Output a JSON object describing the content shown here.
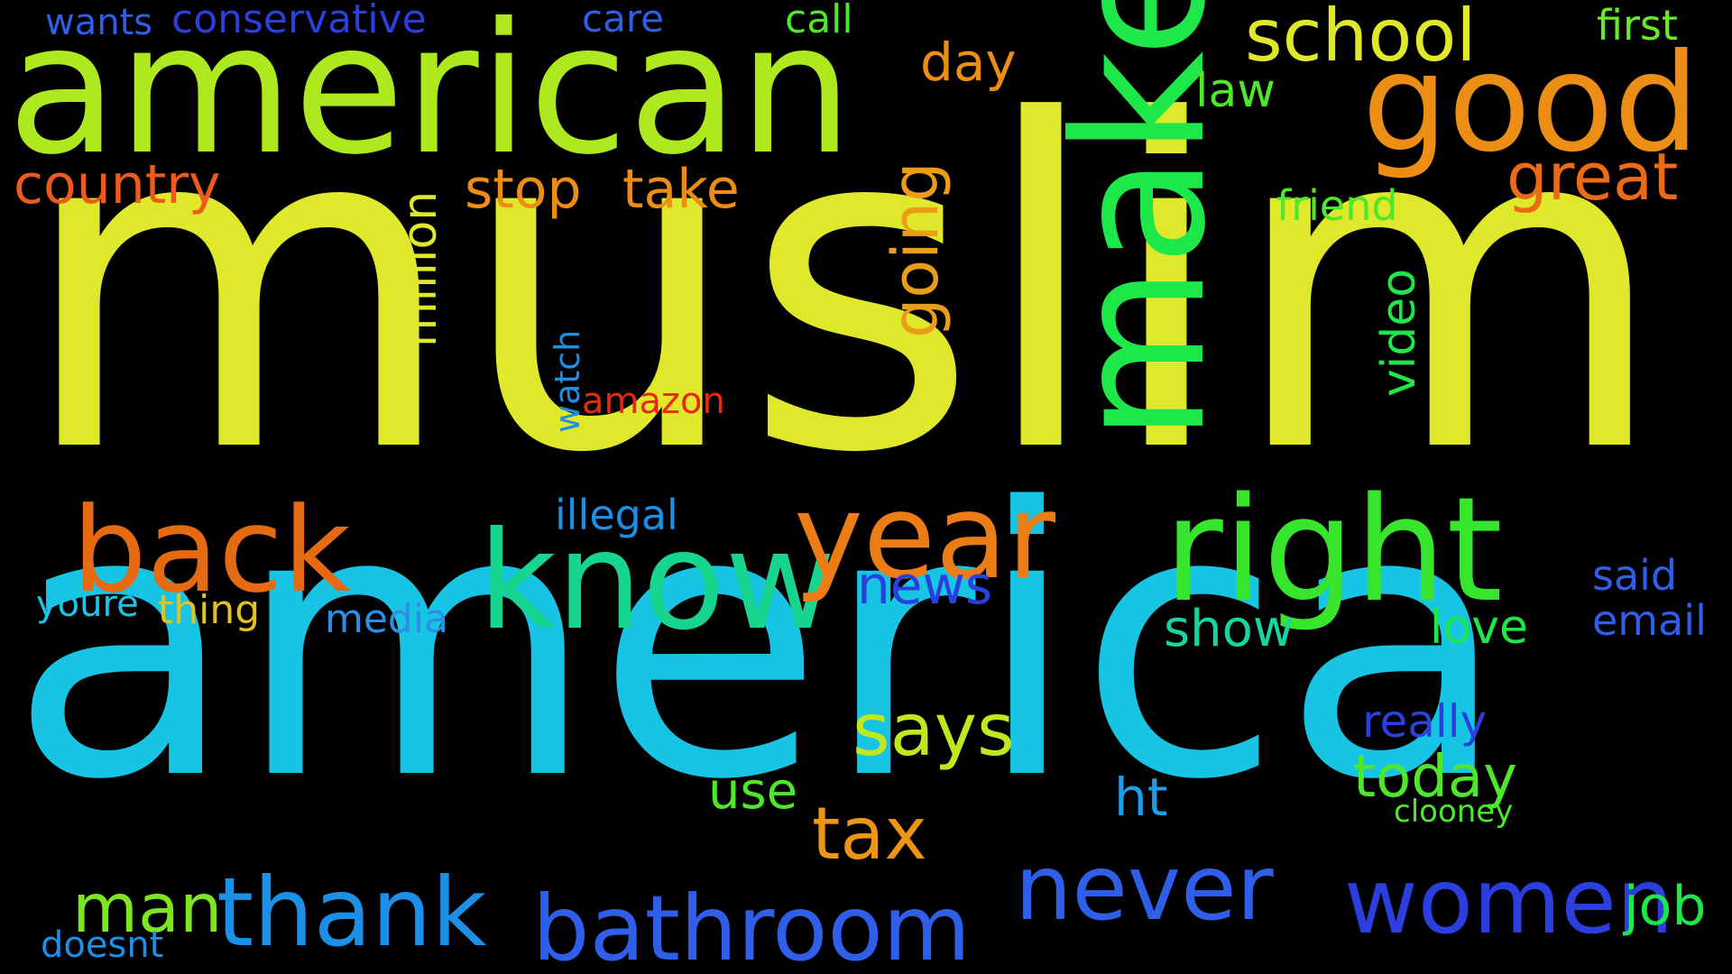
{
  "words": [
    {
      "text": "muslim",
      "color": "#dfe82a"
    },
    {
      "text": "america",
      "color": "#17c4e4"
    },
    {
      "text": "american",
      "color": "#aee81f"
    },
    {
      "text": "make",
      "color": "#1ee849"
    },
    {
      "text": "good",
      "color": "#ec8d16"
    },
    {
      "text": "right",
      "color": "#36e52c"
    },
    {
      "text": "know",
      "color": "#17d48e"
    },
    {
      "text": "year",
      "color": "#ec7c16"
    },
    {
      "text": "back",
      "color": "#e66a12"
    },
    {
      "text": "thank",
      "color": "#1c8fe6"
    },
    {
      "text": "bathroom",
      "color": "#2f5fe8"
    },
    {
      "text": "never",
      "color": "#2f5fe8"
    },
    {
      "text": "women",
      "color": "#2b3fdf"
    },
    {
      "text": "school",
      "color": "#dfe82a"
    },
    {
      "text": "country",
      "color": "#ec5a1c"
    },
    {
      "text": "stop",
      "color": "#ec8d16"
    },
    {
      "text": "take",
      "color": "#ec8d16"
    },
    {
      "text": "great",
      "color": "#ec6a16"
    },
    {
      "text": "says",
      "color": "#bfe81f"
    },
    {
      "text": "tax",
      "color": "#ec9516"
    },
    {
      "text": "man",
      "color": "#7ce61f"
    },
    {
      "text": "going",
      "color": "#ec9d16"
    },
    {
      "text": "million",
      "color": "#dfe82a"
    },
    {
      "text": "conservative",
      "color": "#2b3fdf"
    },
    {
      "text": "wants",
      "color": "#2f5fe8"
    },
    {
      "text": "care",
      "color": "#2f5fe8"
    },
    {
      "text": "call",
      "color": "#4ee82a"
    },
    {
      "text": "first",
      "color": "#6ae82a"
    },
    {
      "text": "day",
      "color": "#ec8d16"
    },
    {
      "text": "law",
      "color": "#4ee82a"
    },
    {
      "text": "friend",
      "color": "#4ee82a"
    },
    {
      "text": "today",
      "color": "#4ee82a"
    },
    {
      "text": "news",
      "color": "#2b3fdf"
    },
    {
      "text": "said",
      "color": "#2f5fe8"
    },
    {
      "text": "email",
      "color": "#2f5fe8"
    },
    {
      "text": "show",
      "color": "#17d4a0"
    },
    {
      "text": "love",
      "color": "#1ee849"
    },
    {
      "text": "job",
      "color": "#1ee849"
    },
    {
      "text": "illegal",
      "color": "#1c8fe6"
    },
    {
      "text": "amazon",
      "color": "#e62a12"
    },
    {
      "text": "video",
      "color": "#1ee849"
    },
    {
      "text": "watch",
      "color": "#1c8fe6"
    },
    {
      "text": "media",
      "color": "#2b8fe6"
    },
    {
      "text": "thing",
      "color": "#e6c21c"
    },
    {
      "text": "youre",
      "color": "#1ec4e8"
    },
    {
      "text": "doesnt",
      "color": "#1c8fe6"
    },
    {
      "text": "ht",
      "color": "#1c9fe6"
    },
    {
      "text": "use",
      "color": "#4ee82a"
    },
    {
      "text": "really",
      "color": "#2b3fdf"
    },
    {
      "text": "clooney",
      "color": "#4ee82a"
    }
  ]
}
